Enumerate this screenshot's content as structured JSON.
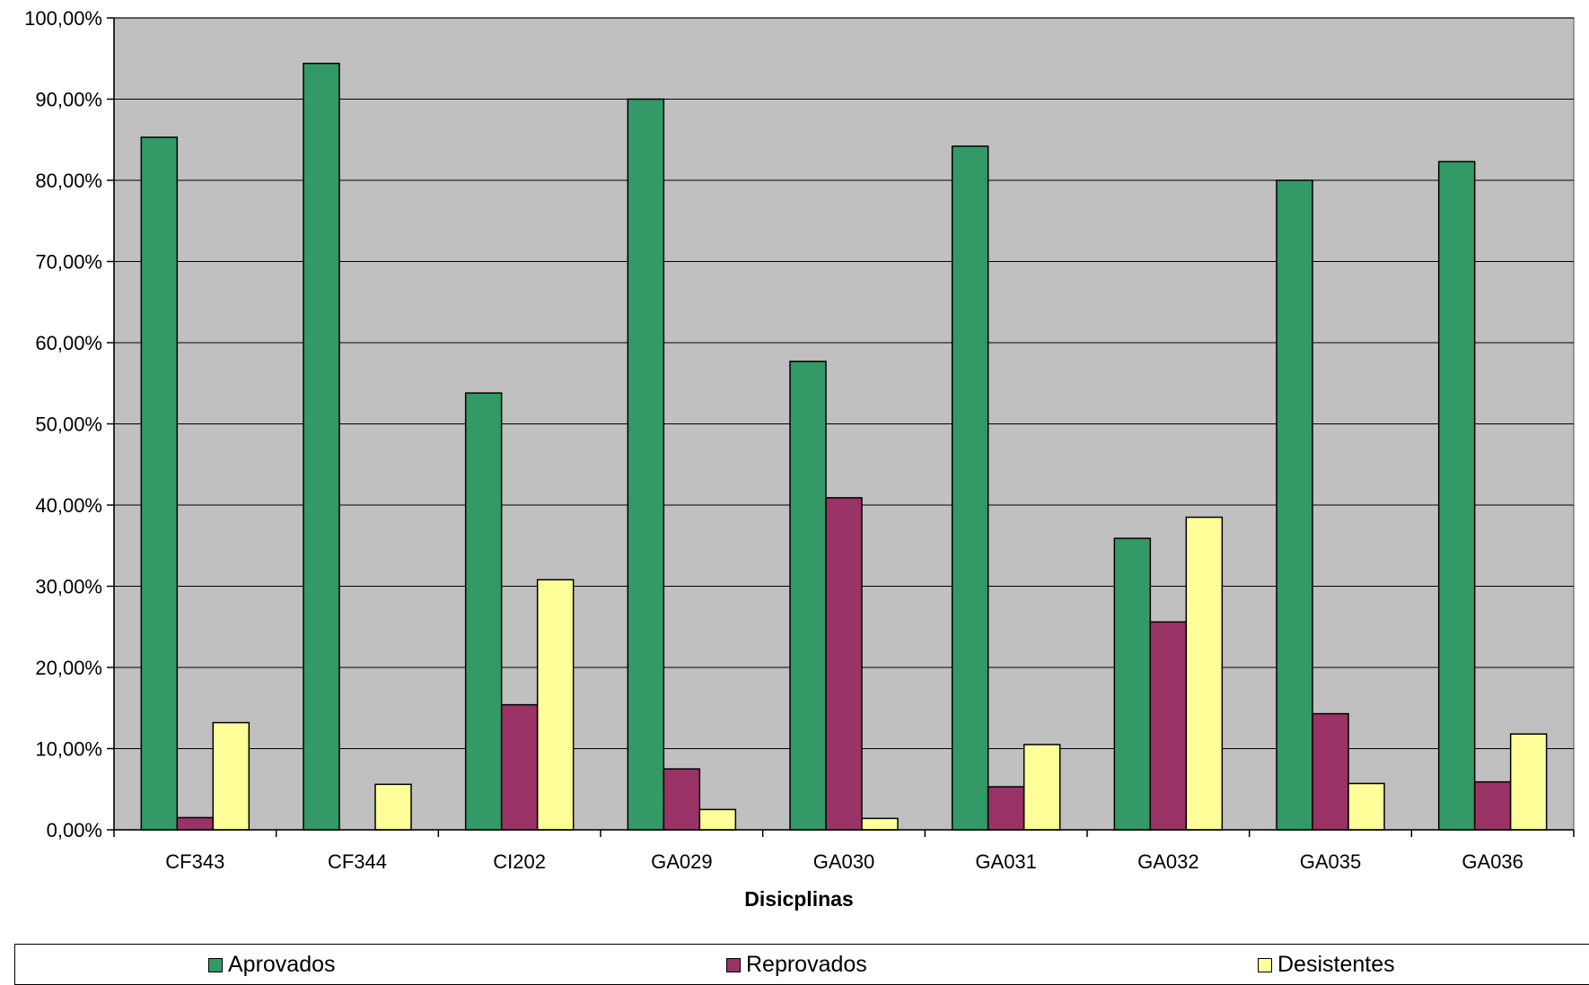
{
  "chart_data": {
    "type": "bar",
    "title": "",
    "xlabel": "Disicplinas",
    "ylabel": "",
    "ylim": [
      0,
      100
    ],
    "yticks": [
      "0,00%",
      "10,00%",
      "20,00%",
      "30,00%",
      "40,00%",
      "50,00%",
      "60,00%",
      "70,00%",
      "80,00%",
      "90,00%",
      "100,00%"
    ],
    "categories": [
      "CF343",
      "CF344",
      "CI202",
      "GA029",
      "GA030",
      "GA031",
      "GA032",
      "GA035",
      "GA036"
    ],
    "series": [
      {
        "name": "Aprovados",
        "color": "#339966",
        "values": [
          85.3,
          94.4,
          53.8,
          90.0,
          57.7,
          84.2,
          35.9,
          80.0,
          82.3
        ]
      },
      {
        "name": "Reprovados",
        "color": "#993366",
        "values": [
          1.5,
          0.0,
          15.4,
          7.5,
          40.9,
          5.3,
          25.6,
          14.3,
          5.9
        ]
      },
      {
        "name": "Desistentes",
        "color": "#FFFF99",
        "values": [
          13.2,
          5.6,
          30.8,
          2.5,
          1.4,
          10.5,
          38.5,
          5.7,
          11.8
        ]
      }
    ],
    "grid": true,
    "legend_position": "bottom",
    "plot_background": "#C0C0C0"
  }
}
